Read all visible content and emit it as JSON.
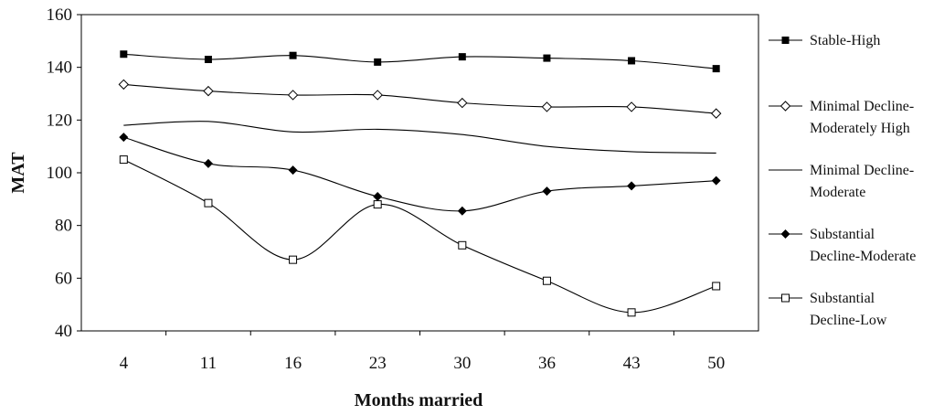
{
  "chart_data": {
    "type": "line",
    "title": "",
    "xlabel": "Months married",
    "ylabel": "MAT",
    "categories": [
      "4",
      "11",
      "16",
      "23",
      "30",
      "36",
      "43",
      "50"
    ],
    "ylim": [
      40,
      160
    ],
    "yticks": [
      "40",
      "60",
      "80",
      "100",
      "120",
      "140",
      "160"
    ],
    "grid": false,
    "legend_position": "right",
    "series": [
      {
        "name": "Stable-High",
        "values": [
          145,
          143,
          144.5,
          142,
          144,
          143.5,
          142.5,
          139.5
        ],
        "marker": "filled-square"
      },
      {
        "name": "Minimal Decline-Moderately High",
        "values": [
          133.5,
          131,
          129.5,
          129.5,
          126.5,
          125,
          125,
          122.5
        ],
        "marker": "open-diamond"
      },
      {
        "name": "Minimal Decline-Moderate",
        "values": [
          118,
          119.5,
          115.5,
          116.5,
          114.5,
          110,
          108,
          107.5
        ],
        "marker": "none"
      },
      {
        "name": "Substantial Decline-Moderate",
        "values": [
          113.5,
          103.5,
          101,
          91,
          85.5,
          93,
          95,
          97
        ],
        "marker": "filled-diamond"
      },
      {
        "name": "Substantial Decline-Low",
        "values": [
          105,
          88.5,
          67,
          88,
          72.5,
          59,
          47,
          57
        ],
        "marker": "open-square"
      }
    ],
    "legend_lines": [
      [
        "Stable-High"
      ],
      [
        "Minimal Decline-",
        "Moderately High"
      ],
      [
        "Minimal Decline-",
        "Moderate"
      ],
      [
        "Substantial",
        "Decline-Moderate"
      ],
      [
        "Substantial",
        "Decline-Low"
      ]
    ]
  }
}
